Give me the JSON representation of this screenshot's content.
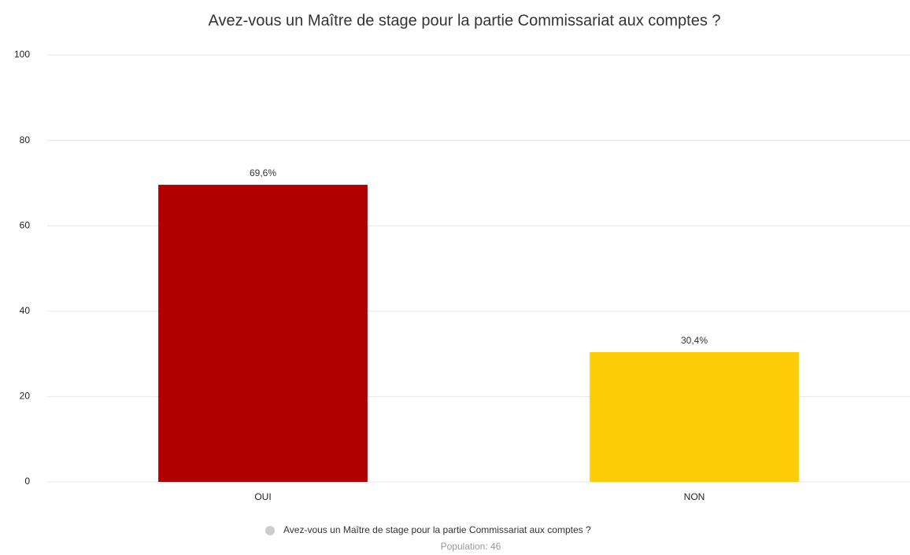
{
  "chart_data": {
    "type": "bar",
    "title": "Avez-vous un Maître de stage pour la partie Commissariat aux comptes ?",
    "categories": [
      "OUI",
      "NON"
    ],
    "series": [
      {
        "name": "Avez-vous un Maître de stage pour la partie Commissariat aux comptes ?",
        "values": [
          69.6,
          30.4
        ],
        "value_labels": [
          "69,6%",
          "30,4%"
        ],
        "colors": [
          "#b00000",
          "#ffcc0a"
        ]
      }
    ],
    "ylim": [
      0,
      100
    ],
    "yticks": [
      0,
      20,
      40,
      60,
      80,
      100
    ],
    "grid": true,
    "legend": "bottom",
    "note": "Population: 46"
  }
}
